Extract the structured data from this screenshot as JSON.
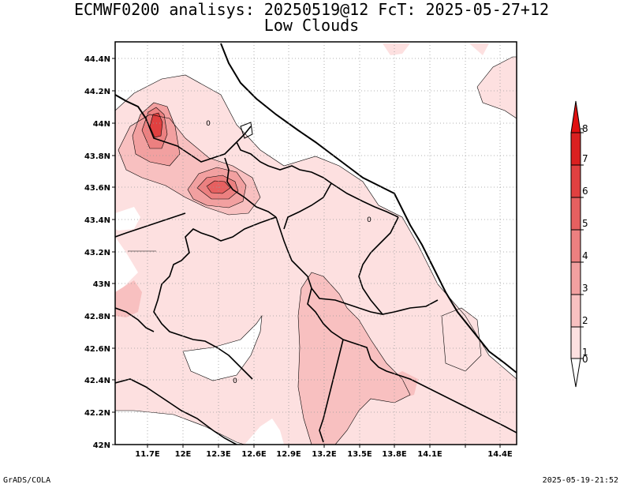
{
  "title_line1": "ECMWF0200 analisys: 20250519@12 FcT: 2025-05-27+12",
  "title_line2": "Low Clouds",
  "footer_left": "GrADS/COLA",
  "footer_right": "2025-05-19-21:52",
  "map": {
    "lat_labels": [
      "44.4N",
      "44.2N",
      "44N",
      "43.8N",
      "43.6N",
      "43.4N",
      "43.2N",
      "43N",
      "42.8N",
      "42.6N",
      "42.4N",
      "42.2N",
      "42N"
    ],
    "lon_labels": [
      "11.7E",
      "12E",
      "12.3E",
      "12.6E",
      "12.9E",
      "13.2E",
      "13.5E",
      "13.8E",
      "14.1E",
      "14.4E"
    ],
    "contour_labels": [
      "0",
      "0",
      "0"
    ]
  },
  "colorbar": {
    "labels": [
      "0",
      "1",
      "2",
      "3",
      "4",
      "5",
      "6",
      "7",
      "8"
    ],
    "colors": [
      "#ffffff",
      "#fde0e0",
      "#f8c0c0",
      "#f2a0a0",
      "#ec8080",
      "#e66060",
      "#e04040",
      "#da2020",
      "#e01010"
    ]
  },
  "palette": {
    "light": "#fde0e0",
    "mid": "#f8c0c0",
    "dark": "#ec8080",
    "darker": "#e04040"
  }
}
